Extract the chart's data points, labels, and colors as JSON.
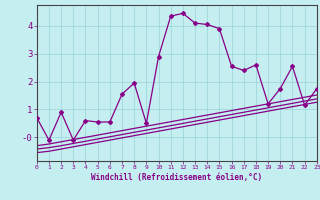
{
  "xlabel": "Windchill (Refroidissement éolien,°C)",
  "background_color": "#c5eef0",
  "grid_color": "#9fd8dc",
  "line_color": "#880088",
  "x_values": [
    0,
    1,
    2,
    3,
    4,
    5,
    6,
    7,
    8,
    9,
    10,
    11,
    12,
    13,
    14,
    15,
    16,
    17,
    18,
    19,
    20,
    21,
    22,
    23
  ],
  "main_y": [
    0.7,
    -0.1,
    0.9,
    -0.1,
    0.6,
    0.55,
    0.55,
    1.55,
    1.95,
    0.5,
    2.9,
    4.35,
    4.45,
    4.1,
    4.05,
    3.9,
    2.55,
    2.4,
    2.6,
    1.2,
    1.75,
    2.55,
    1.15,
    1.75
  ],
  "line1_y": [
    -0.55,
    -0.5,
    -0.42,
    -0.34,
    -0.26,
    -0.18,
    -0.1,
    -0.02,
    0.06,
    0.14,
    0.22,
    0.3,
    0.38,
    0.46,
    0.54,
    0.62,
    0.7,
    0.78,
    0.86,
    0.94,
    1.02,
    1.1,
    1.18,
    1.26
  ],
  "line2_y": [
    -0.42,
    -0.37,
    -0.3,
    -0.22,
    -0.14,
    -0.06,
    0.02,
    0.1,
    0.18,
    0.26,
    0.34,
    0.42,
    0.5,
    0.58,
    0.66,
    0.74,
    0.82,
    0.9,
    0.98,
    1.06,
    1.14,
    1.22,
    1.3,
    1.38
  ],
  "line3_y": [
    -0.3,
    -0.24,
    -0.16,
    -0.08,
    0.0,
    0.08,
    0.16,
    0.24,
    0.32,
    0.4,
    0.48,
    0.56,
    0.64,
    0.72,
    0.8,
    0.88,
    0.96,
    1.04,
    1.12,
    1.2,
    1.28,
    1.36,
    1.44,
    1.52
  ],
  "ylim": [
    -0.85,
    4.75
  ],
  "xlim": [
    0,
    23
  ],
  "yticks": [
    0,
    1,
    2,
    3,
    4
  ],
  "ytick_labels": [
    "-0",
    "1",
    "2",
    "3",
    "4"
  ]
}
